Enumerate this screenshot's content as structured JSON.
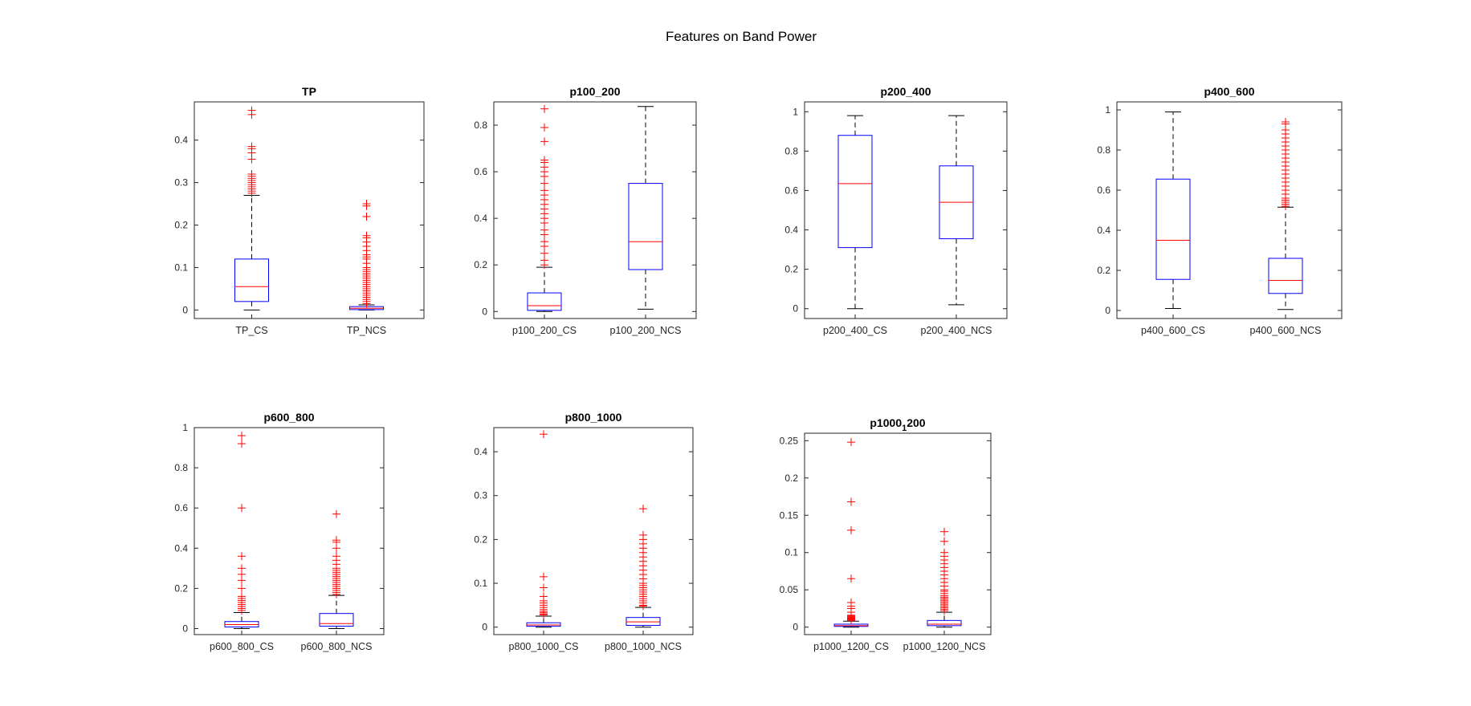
{
  "figure": {
    "title": "Features on Band Power"
  },
  "chart_data": [
    {
      "type": "boxplot",
      "title": "TP",
      "categories": [
        "TP_CS",
        "TP_NCS"
      ],
      "ylim": [
        -0.02,
        0.49
      ],
      "yticks": [
        0,
        0.1,
        0.2,
        0.3,
        0.4
      ],
      "ytick_labels": [
        "0",
        "0.1",
        "0.2",
        "0.3",
        "0.4"
      ],
      "boxes": [
        {
          "whisker_low": 0.0,
          "q1": 0.02,
          "median": 0.055,
          "q3": 0.12,
          "whisker_high": 0.27,
          "outliers": [
            0.275,
            0.28,
            0.285,
            0.29,
            0.295,
            0.3,
            0.305,
            0.31,
            0.315,
            0.32,
            0.355,
            0.37,
            0.38,
            0.385,
            0.46,
            0.47
          ]
        },
        {
          "whisker_low": 0.0,
          "q1": 0.001,
          "median": 0.004,
          "q3": 0.008,
          "whisker_high": 0.012,
          "outliers": [
            0.015,
            0.02,
            0.025,
            0.03,
            0.035,
            0.04,
            0.045,
            0.05,
            0.055,
            0.06,
            0.065,
            0.07,
            0.075,
            0.08,
            0.085,
            0.09,
            0.095,
            0.1,
            0.11,
            0.12,
            0.125,
            0.13,
            0.14,
            0.15,
            0.16,
            0.17,
            0.175,
            0.22,
            0.245,
            0.25
          ]
        }
      ]
    },
    {
      "type": "boxplot",
      "title": "p100_200",
      "categories": [
        "p100_200_CS",
        "p100_200_NCS"
      ],
      "ylim": [
        -0.03,
        0.9
      ],
      "yticks": [
        0,
        0.2,
        0.4,
        0.6,
        0.8
      ],
      "ytick_labels": [
        "0",
        "0.2",
        "0.4",
        "0.6",
        "0.8"
      ],
      "boxes": [
        {
          "whisker_low": 0.0,
          "q1": 0.005,
          "median": 0.025,
          "q3": 0.08,
          "whisker_high": 0.19,
          "outliers": [
            0.2,
            0.22,
            0.25,
            0.28,
            0.3,
            0.33,
            0.35,
            0.38,
            0.4,
            0.42,
            0.44,
            0.46,
            0.48,
            0.5,
            0.52,
            0.55,
            0.58,
            0.6,
            0.62,
            0.64,
            0.65,
            0.73,
            0.79,
            0.87
          ]
        },
        {
          "whisker_low": 0.01,
          "q1": 0.18,
          "median": 0.3,
          "q3": 0.55,
          "whisker_high": 0.88,
          "outliers": []
        }
      ]
    },
    {
      "type": "boxplot",
      "title": "p200_400",
      "categories": [
        "p200_400_CS",
        "p200_400_NCS"
      ],
      "ylim": [
        -0.05,
        1.05
      ],
      "yticks": [
        0,
        0.2,
        0.4,
        0.6,
        0.8,
        1
      ],
      "ytick_labels": [
        "0",
        "0.2",
        "0.4",
        "0.6",
        "0.8",
        "1"
      ],
      "boxes": [
        {
          "whisker_low": 0.0,
          "q1": 0.31,
          "median": 0.635,
          "q3": 0.88,
          "whisker_high": 0.98,
          "outliers": []
        },
        {
          "whisker_low": 0.02,
          "q1": 0.355,
          "median": 0.54,
          "q3": 0.725,
          "whisker_high": 0.98,
          "outliers": []
        }
      ]
    },
    {
      "type": "boxplot",
      "title": "p400_600",
      "categories": [
        "p400_600_CS",
        "p400_600_NCS"
      ],
      "ylim": [
        -0.04,
        1.04
      ],
      "yticks": [
        0,
        0.2,
        0.4,
        0.6,
        0.8,
        1
      ],
      "ytick_labels": [
        "0",
        "0.2",
        "0.4",
        "0.6",
        "0.8",
        "1"
      ],
      "boxes": [
        {
          "whisker_low": 0.01,
          "q1": 0.155,
          "median": 0.35,
          "q3": 0.655,
          "whisker_high": 0.99,
          "outliers": []
        },
        {
          "whisker_low": 0.005,
          "q1": 0.085,
          "median": 0.15,
          "q3": 0.26,
          "whisker_high": 0.515,
          "outliers": [
            0.52,
            0.53,
            0.54,
            0.55,
            0.56,
            0.58,
            0.6,
            0.62,
            0.64,
            0.66,
            0.68,
            0.7,
            0.72,
            0.74,
            0.76,
            0.78,
            0.8,
            0.82,
            0.84,
            0.86,
            0.88,
            0.9,
            0.93,
            0.94
          ]
        }
      ]
    },
    {
      "type": "boxplot",
      "title": "p600_800",
      "categories": [
        "p600_800_CS",
        "p600_800_NCS"
      ],
      "ylim": [
        -0.03,
        1.0
      ],
      "yticks": [
        0,
        0.2,
        0.4,
        0.6,
        0.8,
        1
      ],
      "ytick_labels": [
        "0",
        "0.2",
        "0.4",
        "0.6",
        "0.8",
        "1"
      ],
      "boxes": [
        {
          "whisker_low": 0.0,
          "q1": 0.008,
          "median": 0.02,
          "q3": 0.035,
          "whisker_high": 0.08,
          "outliers": [
            0.09,
            0.1,
            0.11,
            0.12,
            0.13,
            0.14,
            0.15,
            0.16,
            0.2,
            0.24,
            0.27,
            0.3,
            0.36,
            0.6,
            0.92,
            0.96
          ]
        },
        {
          "whisker_low": 0.0,
          "q1": 0.012,
          "median": 0.025,
          "q3": 0.075,
          "whisker_high": 0.165,
          "outliers": [
            0.17,
            0.18,
            0.19,
            0.2,
            0.21,
            0.22,
            0.23,
            0.24,
            0.25,
            0.26,
            0.27,
            0.28,
            0.29,
            0.3,
            0.32,
            0.34,
            0.36,
            0.4,
            0.43,
            0.44,
            0.57
          ]
        }
      ]
    },
    {
      "type": "boxplot",
      "title": "p800_1000",
      "categories": [
        "p800_1000_CS",
        "p800_1000_NCS"
      ],
      "ylim": [
        -0.017,
        0.455
      ],
      "yticks": [
        0,
        0.1,
        0.2,
        0.3,
        0.4
      ],
      "ytick_labels": [
        "0",
        "0.1",
        "0.2",
        "0.3",
        "0.4"
      ],
      "boxes": [
        {
          "whisker_low": 0.0,
          "q1": 0.002,
          "median": 0.005,
          "q3": 0.01,
          "whisker_high": 0.025,
          "outliers": [
            0.028,
            0.03,
            0.033,
            0.036,
            0.04,
            0.045,
            0.05,
            0.055,
            0.06,
            0.07,
            0.09,
            0.115,
            0.44
          ]
        },
        {
          "whisker_low": 0.0,
          "q1": 0.004,
          "median": 0.012,
          "q3": 0.022,
          "whisker_high": 0.045,
          "outliers": [
            0.048,
            0.05,
            0.055,
            0.06,
            0.065,
            0.07,
            0.075,
            0.08,
            0.085,
            0.09,
            0.095,
            0.1,
            0.11,
            0.12,
            0.13,
            0.14,
            0.15,
            0.16,
            0.17,
            0.18,
            0.19,
            0.2,
            0.21,
            0.27
          ]
        }
      ]
    },
    {
      "type": "boxplot",
      "title_main": "p1000",
      "title_sub": "1",
      "title_tail": "200",
      "categories": [
        "p1000_1200_CS",
        "p1000_1200_NCS"
      ],
      "ylim": [
        -0.01,
        0.26
      ],
      "yticks": [
        0,
        0.05,
        0.1,
        0.15,
        0.2,
        0.25
      ],
      "ytick_labels": [
        "0",
        "0.05",
        "0.1",
        "0.15",
        "0.2",
        "0.25"
      ],
      "boxes": [
        {
          "whisker_low": 0.0,
          "q1": 0.001,
          "median": 0.002,
          "q3": 0.004,
          "whisker_high": 0.008,
          "outliers": [
            0.009,
            0.01,
            0.011,
            0.012,
            0.013,
            0.014,
            0.015,
            0.016,
            0.02,
            0.025,
            0.028,
            0.033,
            0.065,
            0.13,
            0.168,
            0.248
          ]
        },
        {
          "whisker_low": 0.0,
          "q1": 0.002,
          "median": 0.004,
          "q3": 0.009,
          "whisker_high": 0.02,
          "outliers": [
            0.022,
            0.024,
            0.026,
            0.028,
            0.03,
            0.032,
            0.034,
            0.036,
            0.038,
            0.04,
            0.042,
            0.045,
            0.048,
            0.05,
            0.055,
            0.06,
            0.065,
            0.07,
            0.075,
            0.08,
            0.085,
            0.09,
            0.095,
            0.1,
            0.115,
            0.128
          ]
        }
      ]
    }
  ],
  "colors": {
    "box": "#0000ff",
    "median": "#ff0000",
    "whisker": "#000000",
    "outlier": "#ff0000",
    "axis": "#262626"
  }
}
